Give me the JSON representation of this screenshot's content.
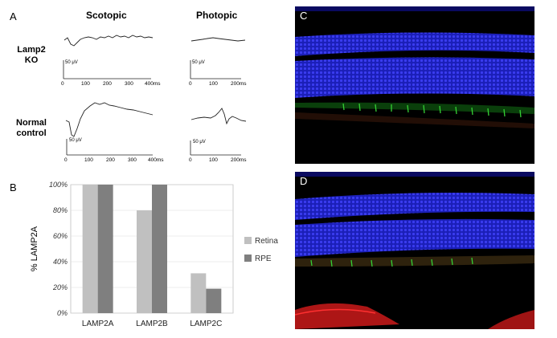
{
  "panels": {
    "a": {
      "letter": "A"
    },
    "b": {
      "letter": "B"
    },
    "c": {
      "letter": "C"
    },
    "d": {
      "letter": "D"
    }
  },
  "erg": {
    "scotopic_title": "Scotopic",
    "photopic_title": "Photopic",
    "rows": [
      {
        "label_line1": "Lamp2",
        "label_line2": "KO"
      },
      {
        "label_line1": "Normal",
        "label_line2": "control"
      }
    ],
    "amplitude_scale": "50 μV",
    "scotopic_ticks": [
      "0",
      "100",
      "200",
      "300",
      "400ms"
    ],
    "photopic_ticks": [
      "0",
      "100",
      "200ms"
    ]
  },
  "chart_data": {
    "type": "bar",
    "title": "",
    "xlabel": "",
    "ylabel": "% LAMP2A",
    "ylim": [
      0,
      100
    ],
    "yticks": [
      "0%",
      "20%",
      "40%",
      "60%",
      "80%",
      "100%"
    ],
    "categories": [
      "LAMP2A",
      "LAMP2B",
      "LAMP2C"
    ],
    "series": [
      {
        "name": "Retina",
        "values": [
          100,
          80,
          31
        ],
        "color": "#c0c0c0"
      },
      {
        "name": "RPE",
        "values": [
          100,
          100,
          19
        ],
        "color": "#7f7f7f"
      }
    ],
    "legend_position": "right"
  }
}
